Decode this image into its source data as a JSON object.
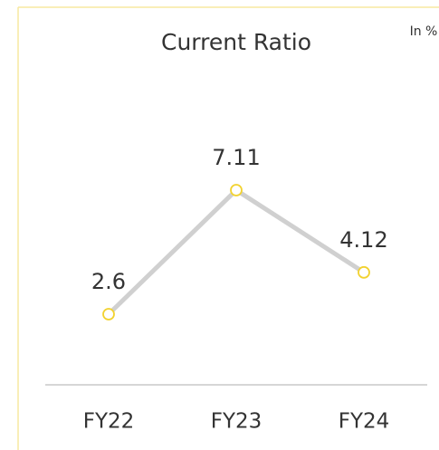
{
  "chart_data": {
    "type": "line",
    "title": "Current Ratio",
    "subtitle": "In %",
    "categories": [
      "FY22",
      "FY23",
      "FY24"
    ],
    "series": [
      {
        "name": "Current Ratio",
        "color": "#d0d0d0",
        "marker_color": "#f2d230",
        "values": [
          2.6,
          7.11,
          4.12
        ]
      }
    ],
    "ylim": [
      0,
      13
    ]
  }
}
